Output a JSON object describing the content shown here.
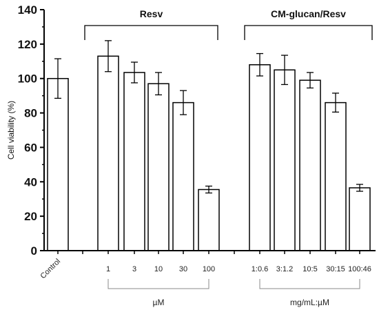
{
  "chart_data": {
    "type": "bar",
    "ylabel": "Cell viability (%)",
    "xlabel": "",
    "ylim": [
      0,
      140
    ],
    "yticks": [
      0,
      20,
      40,
      60,
      80,
      100,
      120,
      140
    ],
    "grid": false,
    "bar_fill": "#ffffff",
    "bar_stroke": "#000000",
    "bars": [
      {
        "label": "Control",
        "value": 100,
        "error": 11.5
      },
      {
        "label": "1",
        "value": 113,
        "error": 9
      },
      {
        "label": "3",
        "value": 103.5,
        "error": 6
      },
      {
        "label": "10",
        "value": 97,
        "error": 6.5
      },
      {
        "label": "30",
        "value": 86,
        "error": 7
      },
      {
        "label": "100",
        "value": 35.5,
        "error": 2
      },
      {
        "label": "1:0.6",
        "value": 108,
        "error": 6.5
      },
      {
        "label": "3:1.2",
        "value": 105,
        "error": 8.5
      },
      {
        "label": "10:5",
        "value": 99,
        "error": 4.5
      },
      {
        "label": "30:15",
        "value": 86,
        "error": 5.5
      },
      {
        "label": "100:46",
        "value": 36.5,
        "error": 2
      }
    ],
    "groups": [
      {
        "title": "Resv",
        "unit": "µM",
        "first_bar": 1,
        "last_bar": 5
      },
      {
        "title": "CM-glucan/Resv",
        "unit": "mg/mL:µM",
        "first_bar": 6,
        "last_bar": 10
      }
    ]
  }
}
